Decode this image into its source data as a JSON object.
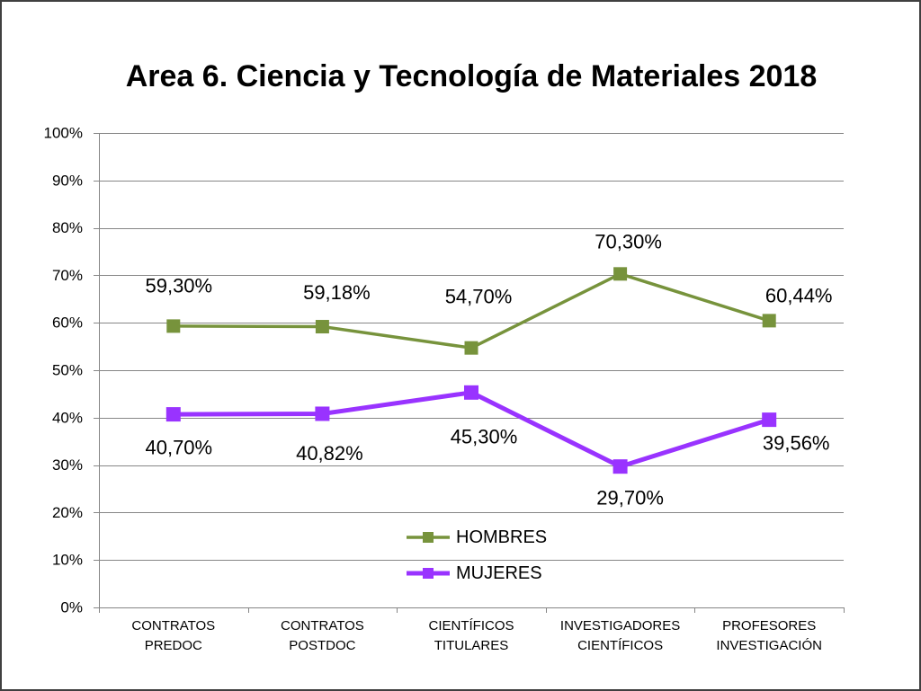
{
  "chart_data": {
    "type": "line",
    "title": "Area 6. Ciencia y Tecnología de Materiales 2018",
    "categories": [
      "CONTRATOS PREDOC",
      "CONTRATOS POSTDOC",
      "CIENTÍFICOS TITULARES",
      "INVESTIGADORES CIENTÍFICOS",
      "PROFESORES INVESTIGACIÓN"
    ],
    "series": [
      {
        "name": "HOMBRES",
        "values": [
          59.3,
          59.18,
          54.7,
          70.3,
          60.44
        ],
        "labels": [
          "59,30%",
          "59,18%",
          "54,70%",
          "70,30%",
          "60,44%"
        ],
        "color": "#77933C"
      },
      {
        "name": "MUJERES",
        "values": [
          40.7,
          40.82,
          45.3,
          29.7,
          39.56
        ],
        "labels": [
          "40,70%",
          "40,82%",
          "45,30%",
          "29,70%",
          "39,56%"
        ],
        "color": "#9933FF"
      }
    ],
    "ylim": [
      0,
      100
    ],
    "yticks": [
      0,
      10,
      20,
      30,
      40,
      50,
      60,
      70,
      80,
      90,
      100
    ],
    "ytick_labels": [
      "0%",
      "10%",
      "20%",
      "30%",
      "40%",
      "50%",
      "60%",
      "70%",
      "80%",
      "90%",
      "100%"
    ],
    "grid": true,
    "legend": "inside-bottom-center",
    "gridline_color": "#868686",
    "frame_color": "#404040"
  }
}
